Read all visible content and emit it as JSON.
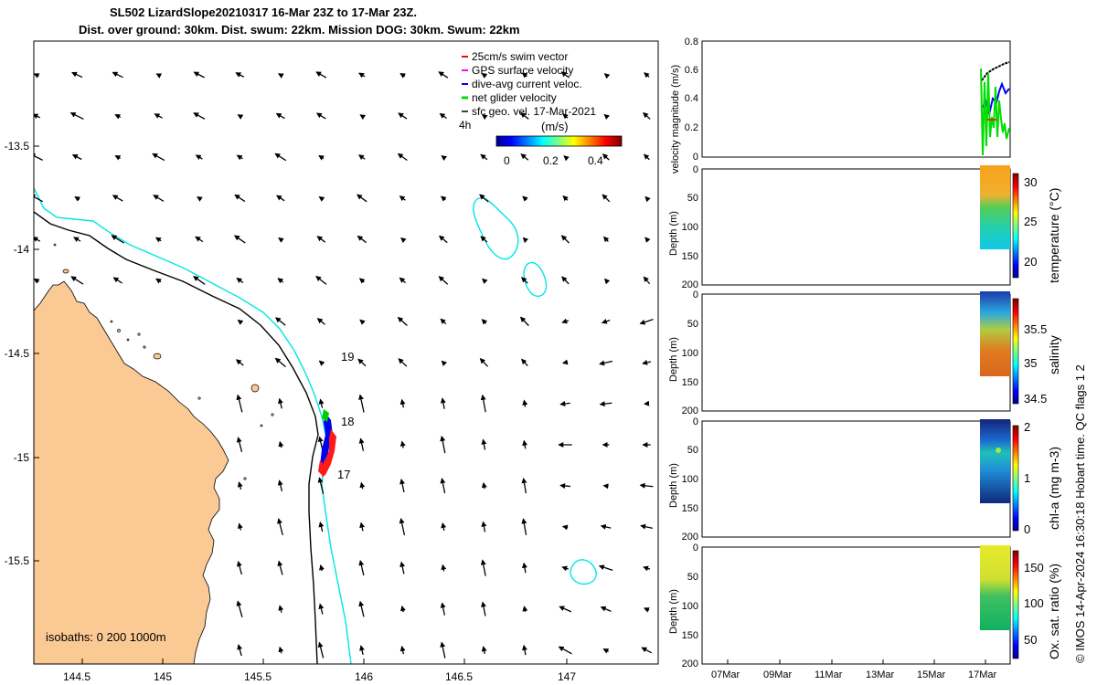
{
  "title_line1": "SL502 LizardSlope20210317 16-Mar 23Z to 17-Mar 23Z.",
  "title_line2": "Dist. over ground: 30km. Dist. swum: 22km. Mission DOG: 30km. Swum: 22km",
  "map": {
    "lon_ticks": [
      "144.5",
      "145",
      "145.5",
      "146",
      "146.5",
      "147"
    ],
    "lat_ticks": [
      "-13.5",
      "-14",
      "-14.5",
      "-15",
      "-15.5"
    ],
    "legend": [
      {
        "label": "25cm/s swim vector",
        "color": "#ff0000"
      },
      {
        "label": "GPS surface velocity",
        "color": "#ff00ff"
      },
      {
        "label": "dive-avg current veloc.",
        "color": "#0000ff"
      },
      {
        "label": "net glider velocity",
        "color": "#00dd00"
      },
      {
        "label": "sfc geo. vel. 17-Mar-2021",
        "color": "#000000"
      }
    ],
    "colorbar_title": "(m/s)",
    "colorbar_ticks": [
      "0",
      "0.2",
      "0.4"
    ],
    "time_label": "4h",
    "day_labels": [
      "19",
      "18",
      "17"
    ],
    "isobaths_label": "isobaths: 0   200  1000m",
    "colors": {
      "land": "#fbc994",
      "shelf_isobath": "#00e5e5",
      "deep_isobath": "#000000"
    }
  },
  "panels": {
    "velocity": {
      "ylabel": "velocity magnitude (m/s)",
      "yticks": [
        "0",
        "0.2",
        "0.4",
        "0.6",
        "0.8"
      ]
    },
    "depth_ticks": [
      "0",
      "50",
      "100",
      "150",
      "200"
    ],
    "depth_ylabel": "Depth (m)",
    "temperature": {
      "label": "temperature (°C)",
      "ticks": [
        "30",
        "25",
        "20"
      ]
    },
    "salinity": {
      "label": "salinity",
      "ticks": [
        "35.5",
        "35",
        "34.5"
      ]
    },
    "chla": {
      "label": "chl-a (mg m-3)",
      "ticks": [
        "2",
        "1",
        "0"
      ]
    },
    "oxygen": {
      "label": "Ox. sat. ratio (%)",
      "ticks": [
        "150",
        "100",
        "50"
      ]
    },
    "date_ticks": [
      "07Mar",
      "09Mar",
      "11Mar",
      "13Mar",
      "15Mar",
      "17Mar"
    ]
  },
  "credit": "© IMOS 14-Apr-2024 16:30:18 Hobart time. QC flags 1  2"
}
